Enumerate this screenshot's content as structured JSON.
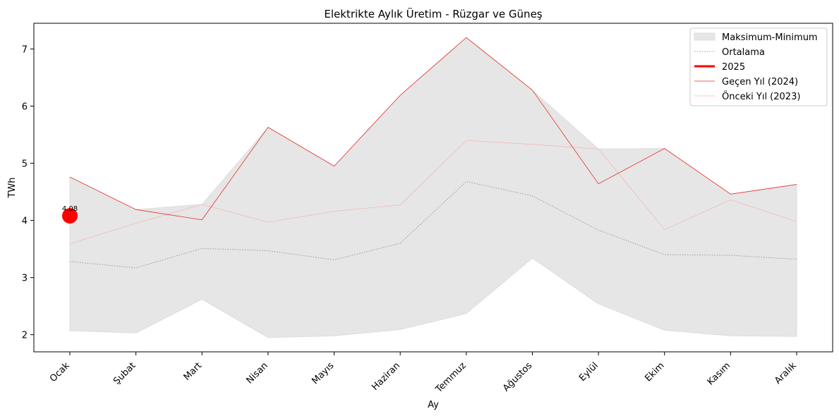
{
  "chart_data": {
    "type": "line",
    "title": "Elektrikte Aylık Üretim - Rüzgar ve Güneş",
    "xlabel": "Ay",
    "ylabel": "TWh",
    "ylim": [
      1.7,
      7.45
    ],
    "yticks": [
      2,
      3,
      4,
      5,
      6,
      7
    ],
    "categories": [
      "Ocak",
      "Şubat",
      "Mart",
      "Nisan",
      "Mayıs",
      "Haziran",
      "Temmuz",
      "Ağustos",
      "Eylül",
      "Ekim",
      "Kasım",
      "Aralık"
    ],
    "band": {
      "name": "Maksimum-Minimum",
      "color": "#e6e6e6",
      "max": [
        4.76,
        4.19,
        4.28,
        5.63,
        4.95,
        6.19,
        7.2,
        6.28,
        5.25,
        5.26,
        4.46,
        4.63
      ],
      "min": [
        2.07,
        2.03,
        2.62,
        1.95,
        1.98,
        2.09,
        2.37,
        3.34,
        2.54,
        2.08,
        1.98,
        1.97
      ]
    },
    "series": [
      {
        "name": "Ortalama",
        "color": "#999999",
        "style": "dotted",
        "values": [
          3.28,
          3.17,
          3.51,
          3.47,
          3.31,
          3.6,
          4.68,
          4.43,
          3.83,
          3.4,
          3.39,
          3.32
        ]
      },
      {
        "name": "2025",
        "color": "#ff0000",
        "style": "thick",
        "values": [
          4.08,
          null,
          null,
          null,
          null,
          null,
          null,
          null,
          null,
          null,
          null,
          null
        ]
      },
      {
        "name": "Geçen Yıl (2024)",
        "color": "#e8332c",
        "style": "thin",
        "values": [
          4.76,
          4.19,
          4.01,
          5.63,
          4.95,
          6.19,
          7.2,
          6.28,
          4.64,
          5.26,
          4.46,
          4.63
        ]
      },
      {
        "name": "Önceki Yıl (2023)",
        "color": "#f2b8b8",
        "style": "thin",
        "values": [
          3.59,
          3.95,
          4.28,
          3.97,
          4.16,
          4.27,
          5.4,
          5.33,
          5.25,
          3.84,
          4.36,
          3.98
        ]
      }
    ],
    "annotations": [
      {
        "text": "4.08",
        "category": "Ocak",
        "value": 4.08
      }
    ],
    "legend": {
      "placement": "top-right"
    },
    "grid": false
  }
}
